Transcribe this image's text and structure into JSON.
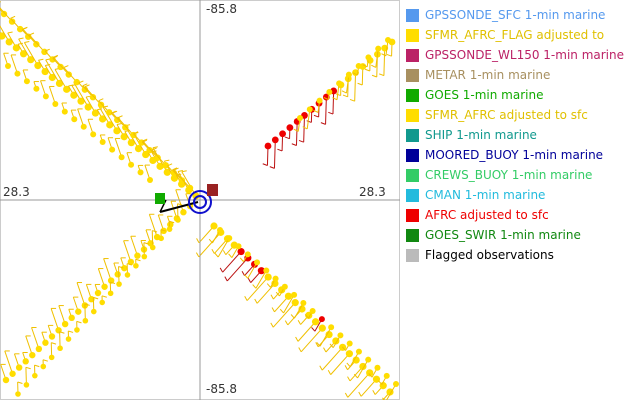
{
  "chart_data": {
    "type": "scatter",
    "axis_labels": {
      "top": "-85.8",
      "bottom": "-85.8",
      "left": "28.3",
      "right": "28.3"
    },
    "legend_placement": "top-right",
    "legend": [
      {
        "label": "GPSSONDE_SFC 1-min marine",
        "swatch_color": "#5599ee",
        "text_color": "#5599ee"
      },
      {
        "label": "SFMR_AFRC_FLAG adjusted to",
        "swatch_color": "#ffdd00",
        "text_color": "#e0c000"
      },
      {
        "label": "GPSSONDE_WL150 1-min marine",
        "swatch_color": "#bb2266",
        "text_color": "#bb2266"
      },
      {
        "label": "METAR 1-min marine",
        "swatch_color": "#a89060",
        "text_color": "#a89060"
      },
      {
        "label": "GOES 1-min marine",
        "swatch_color": "#11aa00",
        "text_color": "#11aa00"
      },
      {
        "label": "SFMR_AFRC adjusted to sfc",
        "swatch_color": "#ffdd00",
        "text_color": "#e0c000"
      },
      {
        "label": "SHIP 1-min marine",
        "swatch_color": "#11998e",
        "text_color": "#11998e"
      },
      {
        "label": "MOORED_BUOY 1-min marine",
        "swatch_color": "#000099",
        "text_color": "#000099"
      },
      {
        "label": "CREWS_BUOY 1-min marine",
        "swatch_color": "#33cc66",
        "text_color": "#33cc66"
      },
      {
        "label": "CMAN 1-min marine",
        "swatch_color": "#22bbdd",
        "text_color": "#22bbdd"
      },
      {
        "label": "AFRC adjusted to sfc",
        "swatch_color": "#ee0000",
        "text_color": "#ee0000"
      },
      {
        "label": "GOES_SWIR 1-min marine",
        "swatch_color": "#118811",
        "text_color": "#118811"
      },
      {
        "label": "Flagged observations",
        "swatch_color": "#bbbbbb",
        "text_color": "#000000"
      }
    ],
    "colors": {
      "sfmr": "#ffdd00",
      "sfmr_barb": "#f0c000",
      "afrc": "#ee0000",
      "afrc_barb": "#bb1111",
      "axis": "#999999",
      "center_ring": "#1010cc",
      "goes": "#11aa00",
      "center_marker": "#992222"
    }
  }
}
